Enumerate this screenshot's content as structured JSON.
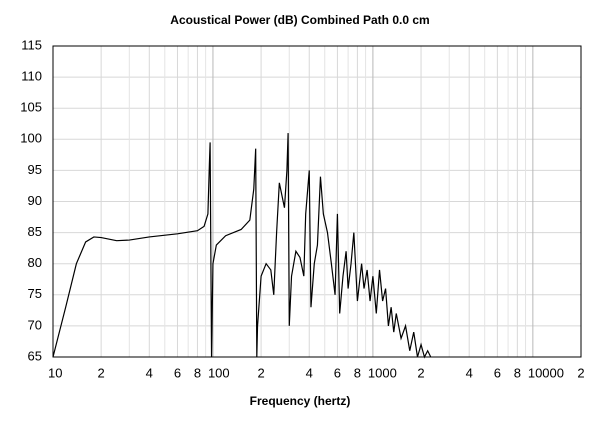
{
  "chart_data": {
    "type": "line",
    "title": "Acoustical Power (dB)   Combined   Path 0.0 cm",
    "xlabel": "Frequency (hertz)",
    "xscale": "log",
    "xlim": [
      10,
      20000
    ],
    "ylim": [
      65,
      115
    ],
    "yticks": [
      65,
      70,
      75,
      80,
      85,
      90,
      95,
      100,
      105,
      110,
      115
    ],
    "xticks": [
      10,
      {
        "value": 20,
        "label": "2"
      },
      {
        "value": 40,
        "label": "4"
      },
      {
        "value": 60,
        "label": "6"
      },
      {
        "value": 80,
        "label": "8"
      },
      100,
      {
        "value": 200,
        "label": "2"
      },
      {
        "value": 400,
        "label": "4"
      },
      {
        "value": 600,
        "label": "6"
      },
      {
        "value": 800,
        "label": "8"
      },
      1000,
      {
        "value": 2000,
        "label": "2"
      },
      {
        "value": 4000,
        "label": "4"
      },
      {
        "value": 6000,
        "label": "6"
      },
      {
        "value": 8000,
        "label": "8"
      },
      10000,
      {
        "value": 20000,
        "label": "2"
      }
    ],
    "xminor_ticks": [
      30,
      50,
      70,
      90,
      300,
      500,
      700,
      900,
      3000,
      5000,
      7000,
      9000
    ],
    "grid": true,
    "series": [
      {
        "color": "#000000",
        "x": [
          10,
          12,
          14,
          16,
          18,
          20,
          25,
          30,
          40,
          60,
          80,
          88,
          93,
          95,
          96,
          97,
          98,
          100,
          105,
          120,
          150,
          170,
          180,
          185,
          188,
          190,
          200,
          215,
          230,
          240,
          250,
          260,
          280,
          290,
          295,
          300,
          310,
          330,
          350,
          370,
          380,
          400,
          410,
          430,
          450,
          470,
          490,
          520,
          550,
          580,
          600,
          620,
          650,
          680,
          700,
          730,
          760,
          800,
          850,
          880,
          920,
          960,
          1000,
          1050,
          1100,
          1150,
          1200,
          1250,
          1300,
          1350,
          1400,
          1500,
          1600,
          1700,
          1800,
          1900,
          2000,
          2100,
          2200,
          2300
        ],
        "values": [
          65,
          73,
          80,
          83.5,
          84.3,
          84.2,
          83.7,
          83.8,
          84.3,
          84.8,
          85.3,
          86,
          88,
          96,
          99.5,
          82,
          65,
          80,
          83,
          84.5,
          85.5,
          87,
          92,
          98.5,
          65,
          70,
          78,
          80,
          79,
          75,
          85,
          93,
          89,
          95,
          101,
          70,
          78,
          82,
          81,
          78,
          88,
          95,
          73,
          80,
          83,
          94,
          88,
          85,
          80,
          75,
          88,
          72,
          78,
          82,
          76,
          80,
          85,
          74,
          80,
          76,
          79,
          74,
          78,
          72,
          79,
          74,
          76,
          70,
          73,
          69,
          72,
          68,
          70,
          66,
          69,
          65,
          67,
          65,
          66,
          65
        ]
      }
    ]
  }
}
